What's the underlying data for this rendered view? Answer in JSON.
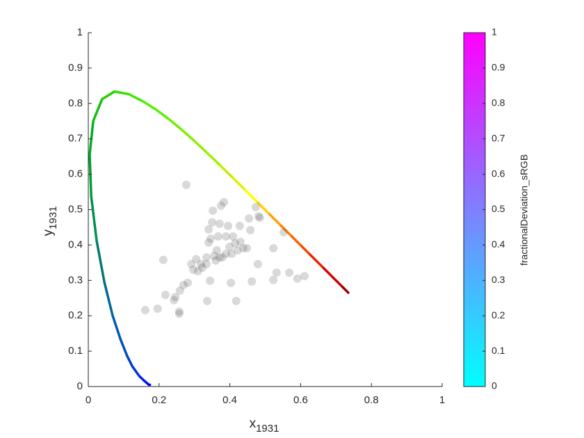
{
  "chart_data": {
    "type": "scatter",
    "x_label": {
      "text": "x",
      "subscript": "1931"
    },
    "y_label": {
      "text": "y",
      "subscript": "1931"
    },
    "xlim": [
      0,
      1
    ],
    "ylim": [
      0,
      1
    ],
    "xticks": [
      0,
      0.2,
      0.4,
      0.6,
      0.8,
      1
    ],
    "yticks": [
      0,
      0.1,
      0.2,
      0.3,
      0.4,
      0.5,
      0.6,
      0.7,
      0.8,
      0.9,
      1
    ],
    "locus": {
      "x": [
        0.1741,
        0.1714,
        0.1644,
        0.1566,
        0.144,
        0.1241,
        0.1096,
        0.0913,
        0.0687,
        0.0454,
        0.0235,
        0.0082,
        0.0039,
        0.0139,
        0.0389,
        0.0743,
        0.1142,
        0.1547,
        0.1929,
        0.2296,
        0.2658,
        0.3016,
        0.3373,
        0.3731,
        0.4087,
        0.4441,
        0.4788,
        0.5125,
        0.5448,
        0.5752,
        0.6029,
        0.627,
        0.6658,
        0.6915,
        0.719,
        0.7347
      ],
      "y": [
        0.005,
        0.0051,
        0.0109,
        0.0177,
        0.0297,
        0.0578,
        0.0868,
        0.1327,
        0.2007,
        0.295,
        0.4127,
        0.5384,
        0.6548,
        0.7502,
        0.812,
        0.8338,
        0.8262,
        0.8059,
        0.7816,
        0.7543,
        0.7243,
        0.6923,
        0.6589,
        0.6245,
        0.5896,
        0.5547,
        0.5202,
        0.4866,
        0.4544,
        0.4242,
        0.3965,
        0.3725,
        0.334,
        0.3083,
        0.2809,
        0.2653
      ],
      "colors": [
        "#0000ff",
        "#0000ff",
        "#0010ff",
        "#0020f0",
        "#0030e0",
        "#0040d0",
        "#0050c0",
        "#005ab0",
        "#006a90",
        "#007a70",
        "#009050",
        "#00a030",
        "#00b020",
        "#10c010",
        "#20d000",
        "#30e000",
        "#40e800",
        "#50f000",
        "#60f000",
        "#70f000",
        "#80f000",
        "#90f000",
        "#a0f000",
        "#c0f000",
        "#e0f000",
        "#ffff00",
        "#ffd000",
        "#ffa000",
        "#ff8000",
        "#ff6000",
        "#ff4000",
        "#f02000",
        "#e00000",
        "#d00000",
        "#a00000",
        "#000000"
      ]
    },
    "points": {
      "color": "#505050",
      "opacity": 0.22,
      "x": [
        0.277,
        0.212,
        0.161,
        0.196,
        0.218,
        0.242,
        0.246,
        0.257,
        0.257,
        0.259,
        0.269,
        0.281,
        0.291,
        0.297,
        0.305,
        0.318,
        0.31,
        0.322,
        0.334,
        0.334,
        0.336,
        0.344,
        0.34,
        0.34,
        0.35,
        0.352,
        0.346,
        0.36,
        0.363,
        0.367,
        0.371,
        0.375,
        0.383,
        0.379,
        0.389,
        0.389,
        0.395,
        0.399,
        0.403,
        0.405,
        0.409,
        0.415,
        0.418,
        0.422,
        0.428,
        0.43,
        0.438,
        0.448,
        0.454,
        0.462,
        0.458,
        0.473,
        0.481,
        0.479,
        0.485,
        0.523,
        0.523,
        0.532,
        0.552,
        0.568,
        0.591,
        0.611,
        0.371,
        0.356
      ],
      "y": [
        0.57,
        0.358,
        0.216,
        0.22,
        0.259,
        0.244,
        0.253,
        0.212,
        0.206,
        0.271,
        0.287,
        0.293,
        0.346,
        0.33,
        0.36,
        0.346,
        0.326,
        0.336,
        0.346,
        0.365,
        0.242,
        0.299,
        0.407,
        0.444,
        0.464,
        0.497,
        0.418,
        0.356,
        0.385,
        0.424,
        0.46,
        0.511,
        0.521,
        0.365,
        0.375,
        0.424,
        0.454,
        0.395,
        0.293,
        0.375,
        0.424,
        0.405,
        0.242,
        0.385,
        0.454,
        0.409,
        0.391,
        0.391,
        0.475,
        0.297,
        0.442,
        0.507,
        0.481,
        0.346,
        0.477,
        0.301,
        0.391,
        0.322,
        0.436,
        0.322,
        0.305,
        0.312,
        0.365,
        0.369
      ]
    },
    "colorbar": {
      "label": "fractionalDeviation_sRGB",
      "lim": [
        0,
        1
      ],
      "ticks": [
        0,
        0.1,
        0.2,
        0.3,
        0.4,
        0.5,
        0.6,
        0.7,
        0.8,
        0.9,
        1
      ],
      "colors": [
        "#00ffff",
        "#ff00ff"
      ]
    }
  }
}
